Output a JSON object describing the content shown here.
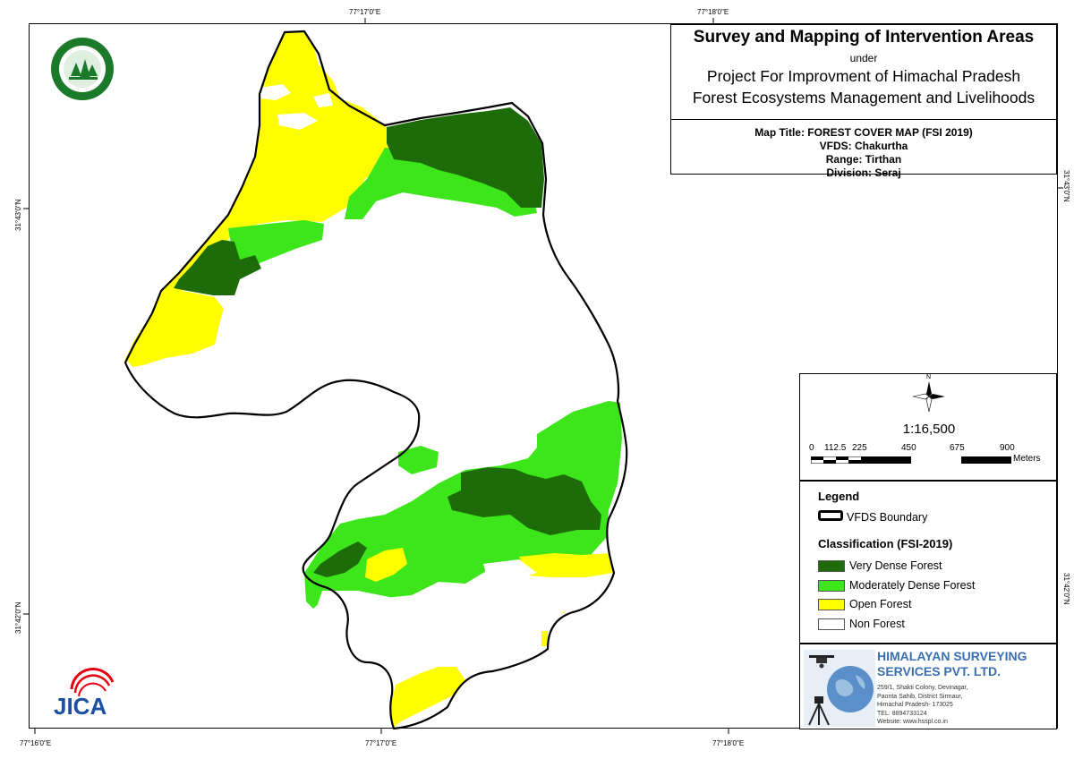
{
  "coords": {
    "top": [
      "77°17'0\"E",
      "77°18'0\"E"
    ],
    "bottom": [
      "77°16'0\"E",
      "77°17'0\"E",
      "77°18'0\"E"
    ],
    "left": [
      "31°43'0\"N",
      "31°42'0\"N"
    ],
    "right": [
      "31°43'0\"N",
      "31°42'0\"N"
    ]
  },
  "title_block": {
    "main": "Survey and Mapping of Intervention Areas",
    "under": "under",
    "project_line1": "Project For Improvment of Himachal Pradesh",
    "project_line2": "Forest Ecosystems Management and Livelihoods",
    "map_title": "Map Title: FOREST COVER MAP (FSI 2019)",
    "vfds": "VFDS: Chakurtha",
    "range": "Range: Tirthan",
    "division": "Division: Seraj"
  },
  "north_arrow": {
    "label": "N",
    "icon": "compass-rose-icon"
  },
  "scale": {
    "ratio": "1:16,500",
    "ticks": [
      "0",
      "112.5",
      "225",
      "450",
      "675",
      "900"
    ],
    "units": "Meters"
  },
  "legend": {
    "title": "Legend",
    "boundary_label": "VFDS Boundary",
    "classification_title": "Classification (FSI-2019)",
    "items": [
      {
        "label": "Very Dense Forest",
        "color": "#1e6b0a"
      },
      {
        "label": "Moderately Dense Forest",
        "color": "#3ce61a"
      },
      {
        "label": "Open Forest",
        "color": "#ffff00"
      },
      {
        "label": "Non Forest",
        "color": "#ffffff"
      }
    ]
  },
  "company": {
    "name_line1": "HIMALAYAN SURVEYING",
    "name_line2": "SERVICES PVT. LTD.",
    "address": [
      "259/1, Shakti Colony, Devinagar,",
      "Paonta Sahib, District Sirmaur,",
      "Himachal Pradesh- 173025",
      "TEL: 8894733124",
      "Website: www.hsspl.co.in"
    ],
    "icons": [
      "drone-icon",
      "globe-icon",
      "tripod-icon"
    ]
  },
  "logos": {
    "forest_dept": "forest-department-logo",
    "jica": "JICA"
  }
}
